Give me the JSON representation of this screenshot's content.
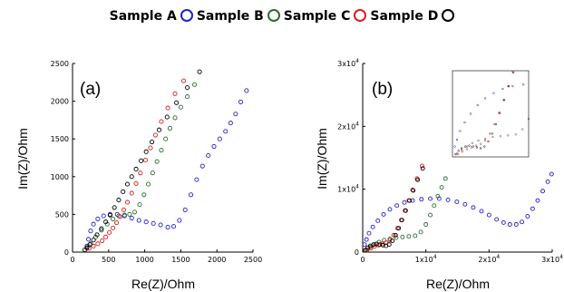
{
  "legend": [
    {
      "name": "Sample A",
      "color": "#1f1fd6"
    },
    {
      "name": "Sample B",
      "color": "#2e6b2e"
    },
    {
      "name": "Sample C",
      "color": "#d81e1e"
    },
    {
      "name": "Sample D",
      "color": "#000000"
    }
  ],
  "chart_data": [
    {
      "type": "scatter",
      "panel_label": "(a)",
      "xlabel": "Re(Z)/Ohm",
      "ylabel": "Im(Z)/Ohm",
      "xlim": [
        0,
        2500
      ],
      "ylim": [
        0,
        2500
      ],
      "xticks": [
        "0",
        "500",
        "1000",
        "1500",
        "2000",
        "2500"
      ],
      "yticks": [
        "0",
        "500",
        "1000",
        "1500",
        "2000",
        "2500"
      ],
      "grid": false,
      "series": [
        {
          "name": "Sample A",
          "color": "#1f1fd6",
          "points": [
            [
              200,
              80
            ],
            [
              220,
              170
            ],
            [
              250,
              280
            ],
            [
              290,
              370
            ],
            [
              350,
              440
            ],
            [
              430,
              480
            ],
            [
              520,
              500
            ],
            [
              620,
              500
            ],
            [
              720,
              480
            ],
            [
              820,
              450
            ],
            [
              920,
              420
            ],
            [
              1020,
              400
            ],
            [
              1120,
              380
            ],
            [
              1220,
              360
            ],
            [
              1320,
              330
            ],
            [
              1400,
              340
            ],
            [
              1480,
              420
            ],
            [
              1560,
              560
            ],
            [
              1640,
              760
            ],
            [
              1720,
              960
            ],
            [
              1800,
              1140
            ],
            [
              1880,
              1280
            ],
            [
              1960,
              1400
            ],
            [
              2040,
              1500
            ],
            [
              2120,
              1600
            ],
            [
              2190,
              1710
            ],
            [
              2260,
              1830
            ],
            [
              2330,
              1990
            ],
            [
              2410,
              2140
            ]
          ]
        },
        {
          "name": "Sample B",
          "color": "#2e6b2e",
          "points": [
            [
              200,
              50
            ],
            [
              250,
              110
            ],
            [
              320,
              200
            ],
            [
              400,
              290
            ],
            [
              480,
              370
            ],
            [
              560,
              440
            ],
            [
              640,
              480
            ],
            [
              720,
              490
            ],
            [
              790,
              500
            ],
            [
              860,
              530
            ],
            [
              930,
              630
            ],
            [
              990,
              760
            ],
            [
              1050,
              900
            ],
            [
              1110,
              1050
            ],
            [
              1170,
              1200
            ],
            [
              1230,
              1350
            ],
            [
              1290,
              1500
            ],
            [
              1350,
              1640
            ],
            [
              1420,
              1780
            ],
            [
              1500,
              1920
            ],
            [
              1590,
              2060
            ],
            [
              1690,
              2220
            ]
          ]
        },
        {
          "name": "Sample C",
          "color": "#d81e1e",
          "points": [
            [
              230,
              50
            ],
            [
              290,
              80
            ],
            [
              350,
              110
            ],
            [
              410,
              150
            ],
            [
              460,
              200
            ],
            [
              510,
              260
            ],
            [
              560,
              320
            ],
            [
              610,
              390
            ],
            [
              660,
              470
            ],
            [
              710,
              560
            ],
            [
              760,
              660
            ],
            [
              820,
              780
            ],
            [
              880,
              910
            ],
            [
              940,
              1050
            ],
            [
              1010,
              1220
            ],
            [
              1080,
              1380
            ],
            [
              1150,
              1550
            ],
            [
              1230,
              1730
            ],
            [
              1320,
              1910
            ],
            [
              1420,
              2100
            ],
            [
              1540,
              2270
            ]
          ]
        },
        {
          "name": "Sample D",
          "color": "#000000",
          "points": [
            [
              170,
              30
            ],
            [
              200,
              60
            ],
            [
              240,
              100
            ],
            [
              290,
              160
            ],
            [
              340,
              230
            ],
            [
              400,
              310
            ],
            [
              460,
              400
            ],
            [
              520,
              490
            ],
            [
              580,
              590
            ],
            [
              640,
              690
            ],
            [
              700,
              800
            ],
            [
              760,
              900
            ],
            [
              820,
              1000
            ],
            [
              880,
              1100
            ],
            [
              950,
              1210
            ],
            [
              1020,
              1330
            ],
            [
              1100,
              1460
            ],
            [
              1200,
              1620
            ],
            [
              1310,
              1790
            ],
            [
              1440,
              1980
            ],
            [
              1590,
              2180
            ],
            [
              1760,
              2390
            ]
          ]
        }
      ]
    },
    {
      "type": "scatter",
      "panel_label": "(b)",
      "xlabel": "Re(Z)/Ohm",
      "ylabel": "Im(Z)/Ohm",
      "xlim": [
        0,
        30000
      ],
      "ylim": [
        0,
        30000
      ],
      "xticks": [
        "0",
        "1x10",
        "2x10",
        "3x10"
      ],
      "yticks": [
        "0",
        "1x10",
        "2x10",
        "3x10"
      ],
      "tick_exponent": "4",
      "grid": false,
      "series": [
        {
          "name": "Sample A",
          "color": "#1f1fd6",
          "points": [
            [
              300,
              1200
            ],
            [
              600,
              2000
            ],
            [
              1000,
              3000
            ],
            [
              1600,
              4000
            ],
            [
              2400,
              5000
            ],
            [
              3300,
              6000
            ],
            [
              4300,
              6800
            ],
            [
              5400,
              7400
            ],
            [
              6600,
              7900
            ],
            [
              7900,
              8200
            ],
            [
              9300,
              8400
            ],
            [
              10700,
              8500
            ],
            [
              12100,
              8500
            ],
            [
              13500,
              8300
            ],
            [
              14900,
              8000
            ],
            [
              16200,
              7600
            ],
            [
              17500,
              7100
            ],
            [
              18800,
              6500
            ],
            [
              20000,
              5900
            ],
            [
              21200,
              5200
            ],
            [
              22300,
              4700
            ],
            [
              23300,
              4400
            ],
            [
              24300,
              4400
            ],
            [
              25200,
              4800
            ],
            [
              26100,
              5700
            ],
            [
              26900,
              6900
            ],
            [
              27700,
              8200
            ],
            [
              28500,
              9700
            ],
            [
              29300,
              11200
            ],
            [
              29900,
              12400
            ]
          ]
        },
        {
          "name": "Sample B",
          "color": "#2e6b2e",
          "points": [
            [
              600,
              400
            ],
            [
              1200,
              800
            ],
            [
              1900,
              1200
            ],
            [
              2600,
              1600
            ],
            [
              3400,
              1900
            ],
            [
              4300,
              2100
            ],
            [
              5300,
              2300
            ],
            [
              6300,
              2400
            ],
            [
              7300,
              2500
            ],
            [
              8300,
              2600
            ],
            [
              9200,
              3200
            ],
            [
              10000,
              4400
            ],
            [
              10700,
              5900
            ],
            [
              11300,
              7400
            ],
            [
              11900,
              8900
            ],
            [
              12500,
              10300
            ],
            [
              13100,
              11700
            ],
            [
              13800,
              13100
            ]
          ]
        },
        {
          "name": "Sample C",
          "color": "#d81e1e",
          "points": [
            [
              700,
              300
            ],
            [
              1300,
              600
            ],
            [
              1900,
              900
            ],
            [
              2500,
              1100
            ],
            [
              3100,
              1300
            ],
            [
              3700,
              1500
            ],
            [
              4300,
              1900
            ],
            [
              4900,
              2700
            ],
            [
              5500,
              3800
            ],
            [
              6100,
              5100
            ],
            [
              6700,
              6600
            ],
            [
              7300,
              8200
            ],
            [
              7900,
              9900
            ],
            [
              8600,
              11700
            ],
            [
              9400,
              13700
            ]
          ]
        },
        {
          "name": "Sample D",
          "color": "#000000",
          "points": [
            [
              400,
              300
            ],
            [
              800,
              700
            ],
            [
              1200,
              1000
            ],
            [
              1700,
              1200
            ],
            [
              2200,
              1300
            ],
            [
              2700,
              1200
            ],
            [
              3200,
              1100
            ],
            [
              3700,
              1000
            ],
            [
              4200,
              1200
            ],
            [
              4700,
              1800
            ],
            [
              5200,
              2700
            ],
            [
              5700,
              3800
            ],
            [
              6200,
              5100
            ],
            [
              6800,
              6600
            ],
            [
              7400,
              8200
            ],
            [
              8000,
              9800
            ],
            [
              8700,
              11500
            ],
            [
              9500,
              13300
            ]
          ]
        }
      ]
    }
  ]
}
